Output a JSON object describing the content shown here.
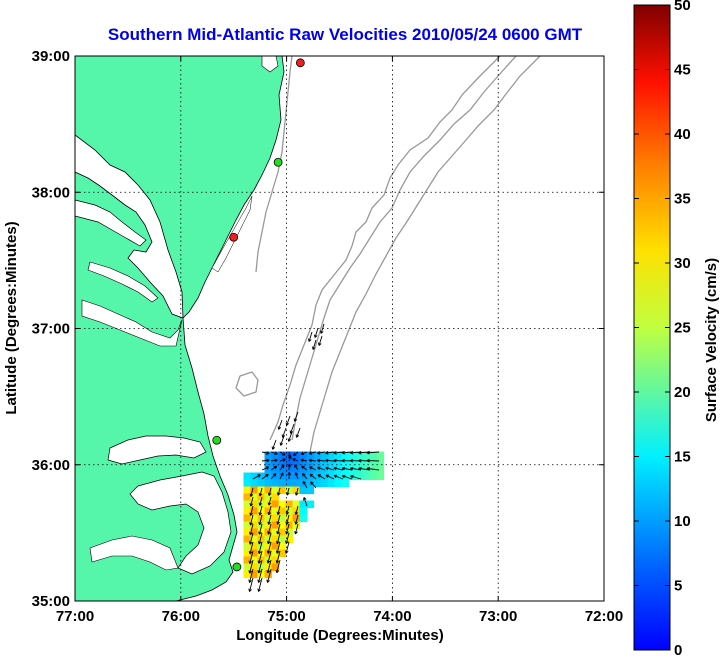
{
  "chart_data": {
    "type": "map-vector-field",
    "title": "Southern Mid-Atlantic Raw Velocities 2010/05/24 0600 GMT",
    "xlabel": "Longitude (Degrees:Minutes)",
    "ylabel": "Latitude (Degrees:Minutes)",
    "xlim": [
      -77,
      -72
    ],
    "ylim": [
      35,
      39
    ],
    "x_ticks": [
      {
        "value": -77,
        "label": "77:00"
      },
      {
        "value": -76,
        "label": "76:00"
      },
      {
        "value": -75,
        "label": "75:00"
      },
      {
        "value": -74,
        "label": "74:00"
      },
      {
        "value": -73,
        "label": "73:00"
      },
      {
        "value": -72,
        "label": "72:00"
      }
    ],
    "y_ticks": [
      {
        "value": 35,
        "label": "35:00"
      },
      {
        "value": 36,
        "label": "36:00"
      },
      {
        "value": 37,
        "label": "37:00"
      },
      {
        "value": 38,
        "label": "38:00"
      },
      {
        "value": 39,
        "label": "39:00"
      }
    ],
    "grid": "dotted",
    "colorbar": {
      "label": "Surface Velocity (cm/s)",
      "min": 0,
      "max": 50,
      "ticks": [
        0,
        5,
        10,
        15,
        20,
        25,
        30,
        35,
        40,
        45,
        50
      ],
      "colormap": "jet",
      "placement": "right"
    },
    "land_color": "#55f5aa",
    "stations": [
      {
        "lon": -74.87,
        "lat": 38.95,
        "color": "#ee2020"
      },
      {
        "lon": -75.08,
        "lat": 38.22,
        "color": "#22dd22"
      },
      {
        "lon": -75.5,
        "lat": 37.67,
        "color": "#ee2020"
      },
      {
        "lon": -75.66,
        "lat": 36.18,
        "color": "#22dd22"
      },
      {
        "lon": -75.47,
        "lat": 35.25,
        "color": "#22dd22"
      }
    ]
  }
}
